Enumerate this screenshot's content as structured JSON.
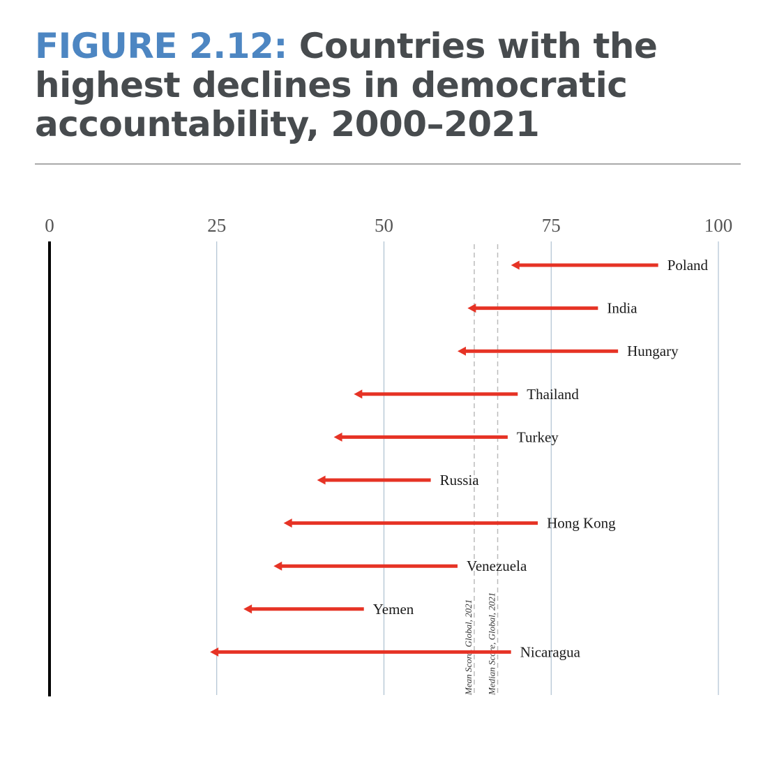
{
  "figure": {
    "label": "FIGURE 2.12:",
    "title": "Countries with the highest declines in democratic accountability, 2000–2021"
  },
  "colors": {
    "title_label": "#4d86c2",
    "title_text": "#474b4e",
    "arrow": "#e63325",
    "gridline": "#9fb6c8",
    "axis": "#000000",
    "reference_line": "#bbbbbb"
  },
  "chart_data": {
    "type": "dumbbell-arrow",
    "title": "Countries with the highest declines in democratic accountability, 2000–2021",
    "xlim": [
      0,
      100
    ],
    "x_ticks": [
      0,
      25,
      50,
      75,
      100
    ],
    "grid": true,
    "series": [
      {
        "country": "Poland",
        "start": 91,
        "end": 69
      },
      {
        "country": "India",
        "start": 82,
        "end": 62.5
      },
      {
        "country": "Hungary",
        "start": 85,
        "end": 61
      },
      {
        "country": "Thailand",
        "start": 70,
        "end": 45.5
      },
      {
        "country": "Turkey",
        "start": 68.5,
        "end": 42.5
      },
      {
        "country": "Russia",
        "start": 57,
        "end": 40
      },
      {
        "country": "Hong Kong",
        "start": 73,
        "end": 35
      },
      {
        "country": "Venezuela",
        "start": 61,
        "end": 33.5
      },
      {
        "country": "Yemen",
        "start": 47,
        "end": 29
      },
      {
        "country": "Nicaragua",
        "start": 69,
        "end": 24
      }
    ],
    "reference_lines": [
      {
        "label": "Mean Score, Global, 2021",
        "value": 63.5
      },
      {
        "label": "Median Score, Global, 2021",
        "value": 67
      }
    ]
  }
}
